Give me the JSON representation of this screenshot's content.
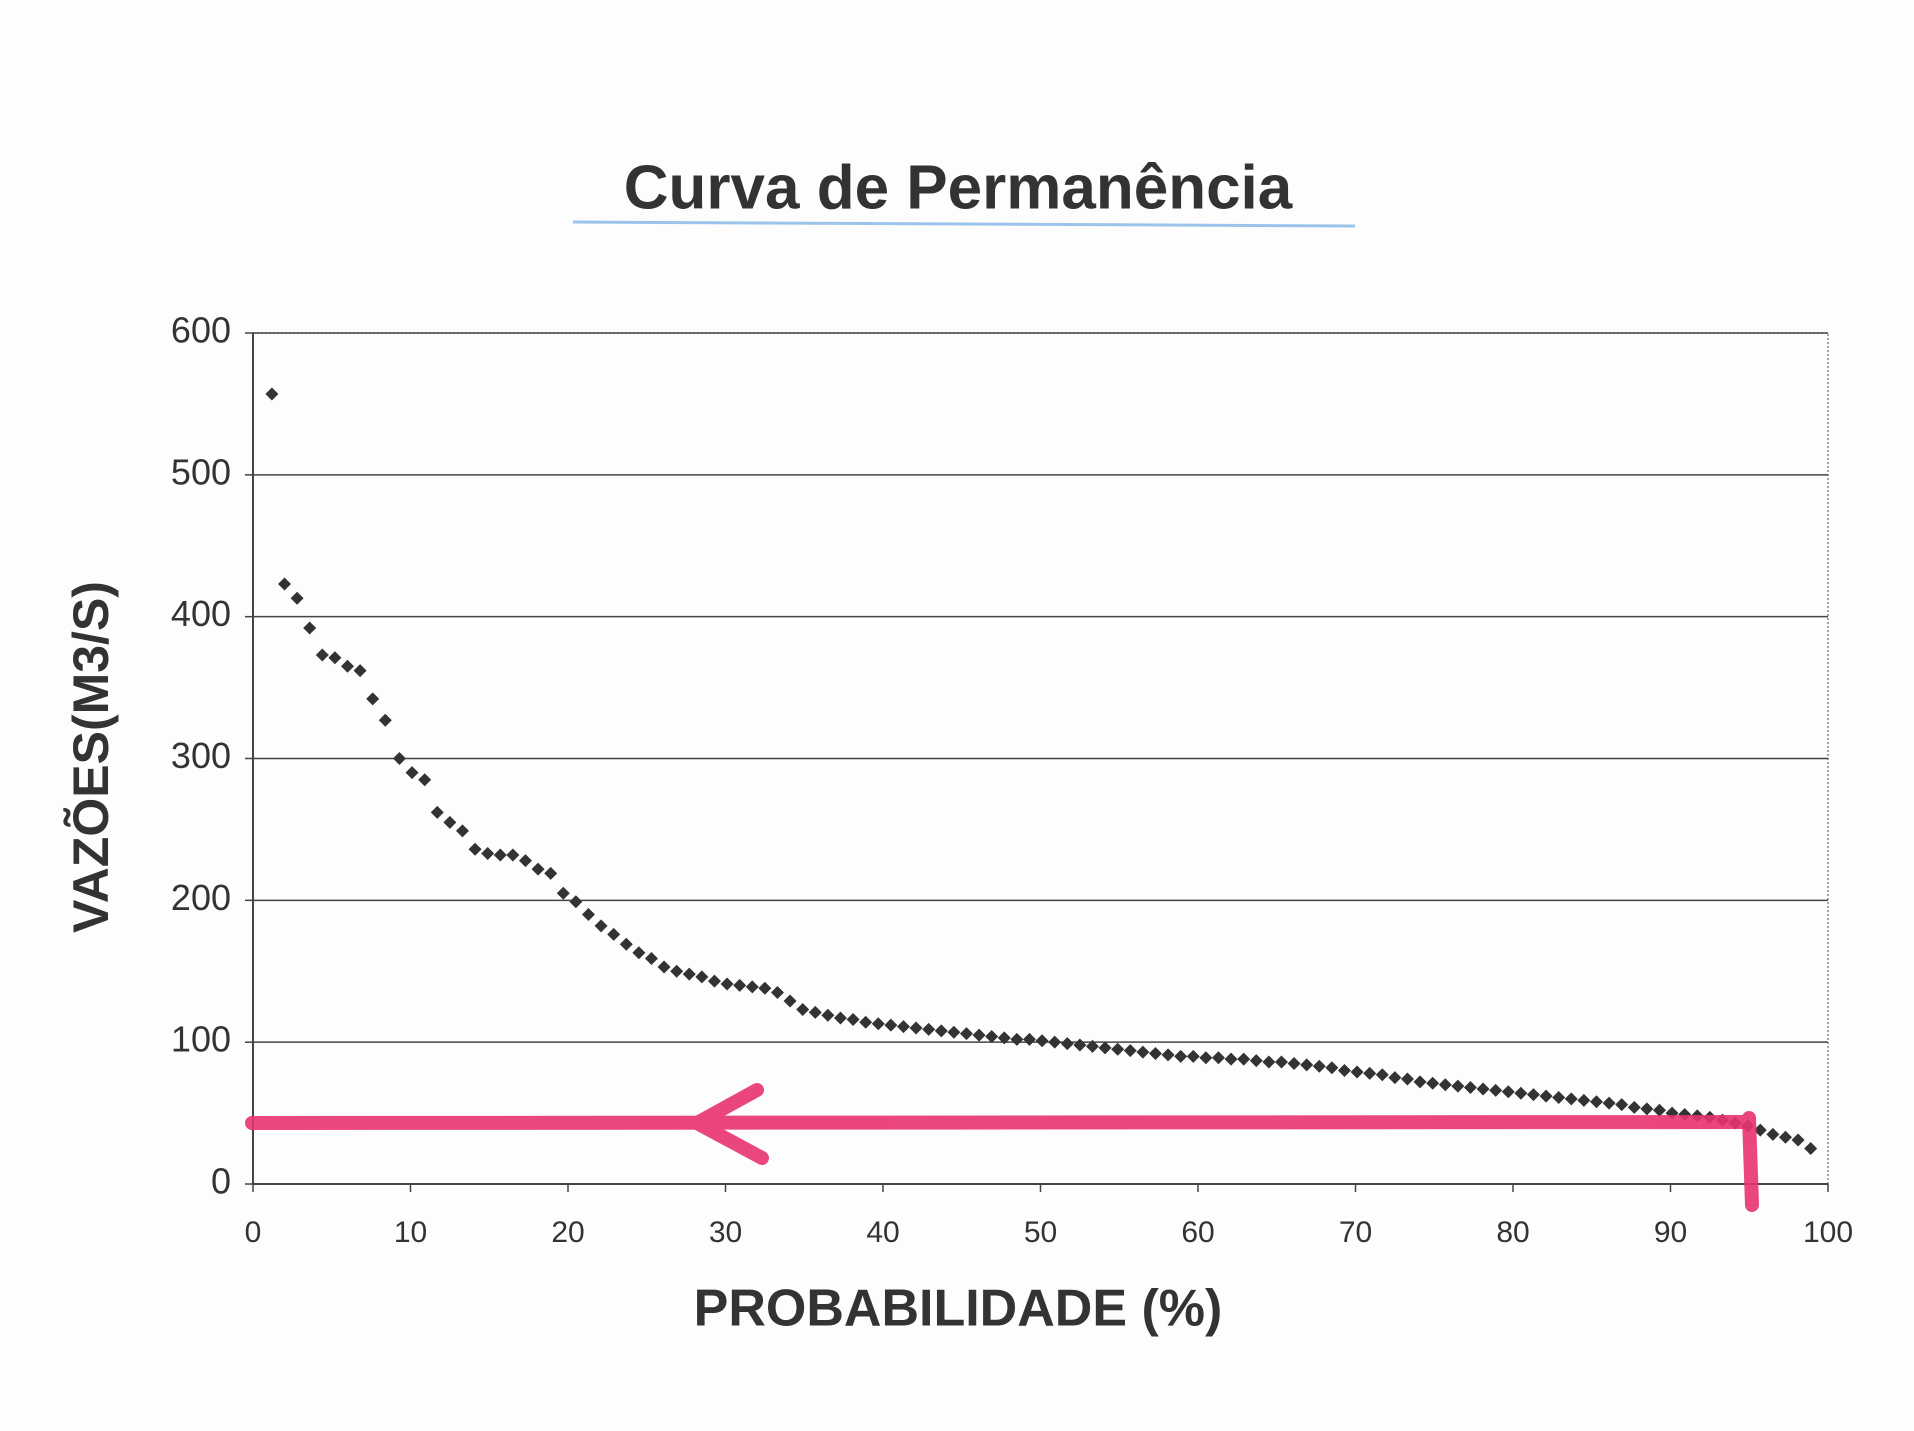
{
  "chart_data": {
    "type": "scatter",
    "title": "Curva de Permanência",
    "x_label": "PROBABILIDADE (%)",
    "y_label": "VAZÕES(M3/S)",
    "color": "#333333",
    "grid": true,
    "xlim": [
      0,
      100
    ],
    "xticks": [
      0,
      10,
      20,
      30,
      40,
      50,
      60,
      70,
      80,
      90,
      100
    ],
    "ylim": [
      0,
      600
    ],
    "yticks": [
      0,
      100,
      200,
      300,
      400,
      500,
      600
    ],
    "x": [
      1.2,
      2.0,
      2.8,
      3.6,
      4.4,
      5.2,
      6.0,
      6.8,
      7.6,
      8.4,
      9.3,
      10.1,
      10.9,
      11.7,
      12.5,
      13.3,
      14.1,
      14.9,
      15.7,
      16.5,
      17.3,
      18.1,
      18.9,
      19.7,
      20.5,
      21.3,
      22.1,
      22.9,
      23.7,
      24.5,
      25.3,
      26.1,
      26.9,
      27.7,
      28.5,
      29.3,
      30.1,
      30.9,
      31.7,
      32.5,
      33.3,
      34.1,
      34.9,
      35.7,
      36.5,
      37.3,
      38.1,
      38.9,
      39.7,
      40.5,
      41.3,
      42.1,
      42.9,
      43.7,
      44.5,
      45.3,
      46.1,
      46.9,
      47.7,
      48.5,
      49.3,
      50.1,
      50.9,
      51.7,
      52.5,
      53.3,
      54.1,
      54.9,
      55.7,
      56.5,
      57.3,
      58.1,
      58.9,
      59.7,
      60.5,
      61.3,
      62.1,
      62.9,
      63.7,
      64.5,
      65.3,
      66.1,
      66.9,
      67.7,
      68.5,
      69.3,
      70.1,
      70.9,
      71.7,
      72.5,
      73.3,
      74.1,
      74.9,
      75.7,
      76.5,
      77.3,
      78.1,
      78.9,
      79.7,
      80.5,
      81.3,
      82.1,
      82.9,
      83.7,
      84.5,
      85.3,
      86.1,
      86.9,
      87.7,
      88.5,
      89.3,
      90.1,
      90.9,
      91.7,
      92.5,
      93.3,
      94.1,
      94.9,
      95.7,
      96.5,
      97.3,
      98.1,
      98.9
    ],
    "values": [
      557,
      423,
      413,
      392,
      373,
      371,
      365,
      362,
      342,
      327,
      300,
      290,
      285,
      262,
      255,
      249,
      236,
      233,
      232,
      232,
      228,
      222,
      219,
      205,
      199,
      190,
      182,
      176,
      169,
      163,
      159,
      153,
      150,
      148,
      146,
      143,
      141,
      140,
      139,
      138,
      135,
      129,
      123,
      121,
      119,
      117,
      116,
      114,
      113,
      112,
      111,
      110,
      109,
      108,
      107,
      106,
      105,
      104,
      103,
      102,
      102,
      101,
      100,
      99,
      98,
      97,
      96,
      95,
      94,
      93,
      92,
      91,
      90,
      90,
      89,
      89,
      88,
      88,
      87,
      86,
      86,
      85,
      84,
      83,
      82,
      80,
      79,
      78,
      77,
      75,
      74,
      72,
      71,
      70,
      69,
      68,
      67,
      66,
      65,
      64,
      63,
      62,
      61,
      60,
      59,
      58,
      57,
      56,
      54,
      53,
      52,
      50,
      49,
      48,
      47,
      45,
      43,
      41,
      38,
      35,
      33,
      31,
      25
    ]
  }
}
